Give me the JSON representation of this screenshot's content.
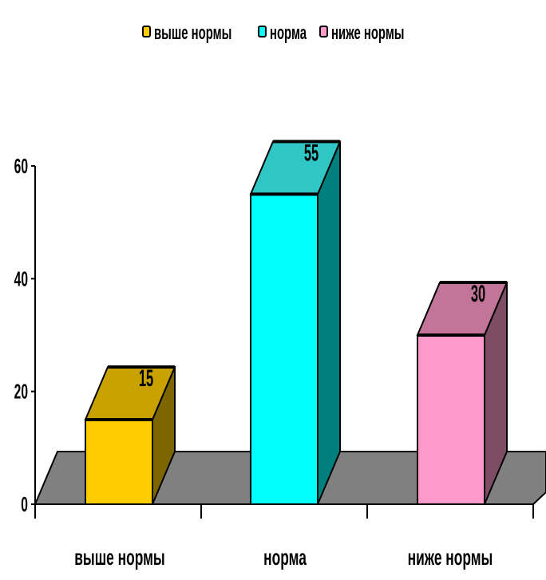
{
  "chart_data": {
    "type": "bar",
    "categories": [
      "выше нормы",
      "норма",
      "ниже нормы"
    ],
    "values": [
      15,
      55,
      30
    ],
    "data_labels": [
      "15",
      "55",
      "30"
    ],
    "ylim": [
      0,
      60
    ],
    "yticks": [
      0,
      20,
      40,
      60
    ],
    "ytick_labels": [
      "0",
      "20",
      "40",
      "60"
    ],
    "legend": {
      "placement": "top",
      "entries": [
        {
          "label": "выше нормы",
          "color": "#ffcc00"
        },
        {
          "label": "норма",
          "color": "#00ffff"
        },
        {
          "label": "ниже нормы",
          "color": "#ff99cc"
        }
      ]
    },
    "colors": {
      "front": [
        "#ffcc00",
        "#00ffff",
        "#ff99cc"
      ],
      "top": [
        "#c9a100",
        "#30c6c6",
        "#c37599"
      ],
      "side": [
        "#7d6500",
        "#007f7f",
        "#7f4c66"
      ],
      "floor": "#808080"
    },
    "style": "3d",
    "grid": false
  }
}
